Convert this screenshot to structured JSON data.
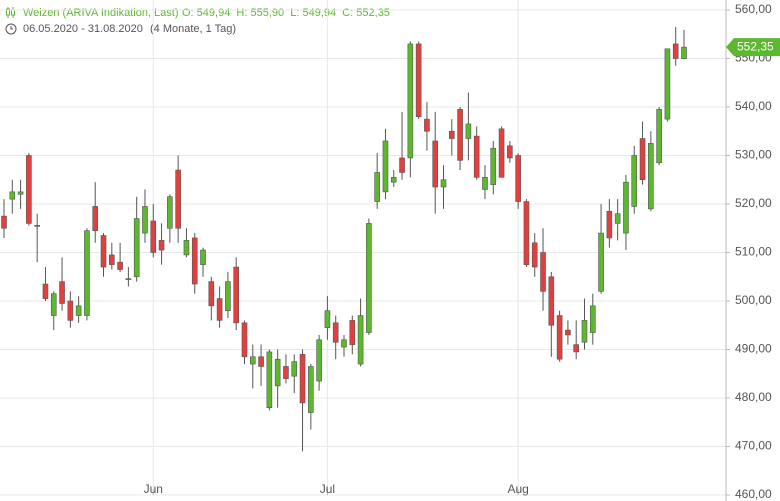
{
  "chart_data": {
    "type": "candlestick",
    "title": "Weizen (ARIVA Indikation, Last)",
    "summary": "O: 549,94  H: 555,90  L: 549,94  C: 552,35",
    "period": "06.05.2020 - 31.08.2020",
    "duration": "(4 Monate, 1 Tag)",
    "up_color": "#5cb82e",
    "down_color": "#e2403e",
    "grid": true,
    "ylim": [
      460,
      560
    ],
    "yticks": [
      {
        "value": 460,
        "label": "460,00"
      },
      {
        "value": 470,
        "label": "470,00"
      },
      {
        "value": 480,
        "label": "480,00"
      },
      {
        "value": 490,
        "label": "490,00"
      },
      {
        "value": 500,
        "label": "500,00"
      },
      {
        "value": 510,
        "label": "510,00"
      },
      {
        "value": 520,
        "label": "520,00"
      },
      {
        "value": 530,
        "label": "530,00"
      },
      {
        "value": 540,
        "label": "540,00"
      },
      {
        "value": 550,
        "label": "550,00"
      },
      {
        "value": 560,
        "label": "560,00"
      }
    ],
    "last_price": {
      "value": 552.35,
      "label": "552,35"
    },
    "categories": [
      null,
      null,
      null,
      null,
      null,
      null,
      null,
      null,
      null,
      null,
      null,
      null,
      null,
      null,
      null,
      null,
      null,
      null,
      "Jun",
      null,
      null,
      null,
      null,
      null,
      null,
      null,
      null,
      null,
      null,
      null,
      null,
      null,
      null,
      null,
      null,
      null,
      null,
      null,
      null,
      "Jul",
      null,
      null,
      null,
      null,
      null,
      null,
      null,
      null,
      null,
      null,
      null,
      null,
      null,
      null,
      null,
      null,
      null,
      null,
      null,
      null,
      null,
      null,
      "Aug",
      null,
      null,
      null,
      null,
      null,
      null,
      null,
      null,
      null,
      null,
      null,
      null,
      null,
      null,
      null,
      null,
      null,
      null,
      null,
      null
    ],
    "open": [
      517.5,
      521,
      522,
      530,
      515.6,
      503.5,
      497,
      504,
      500,
      497,
      497,
      519.5,
      513.5,
      509.5,
      508,
      504.4,
      505,
      514,
      516.5,
      512.5,
      515,
      527,
      509.5,
      513,
      507.5,
      504,
      500.5,
      498,
      507,
      495.5,
      487,
      488.5,
      478,
      482.5,
      486.5,
      484.5,
      489,
      477,
      483.5,
      494.5,
      495.5,
      490.5,
      496,
      487,
      493.5,
      520.5,
      522.5,
      524.5,
      529.5,
      529.5,
      553,
      537.5,
      533,
      523.5,
      535,
      539.5,
      533.5,
      534,
      523,
      524,
      535.5,
      532,
      530,
      520.5,
      512,
      510,
      505,
      497,
      494,
      491,
      491.5,
      493.5,
      502,
      518.5,
      516,
      514,
      519.5,
      533.5,
      519,
      528.5,
      537.5,
      553,
      549.94
    ],
    "high": [
      521,
      525,
      525,
      530.5,
      518,
      507,
      502,
      509,
      502,
      501,
      515,
      524.5,
      514,
      512,
      512,
      507,
      521.5,
      523,
      520,
      516,
      522,
      530,
      515,
      514,
      511,
      505,
      503,
      506,
      509,
      496,
      491,
      491,
      490,
      490,
      489,
      489,
      490,
      487,
      493,
      501,
      497,
      493,
      497,
      500.5,
      517,
      530.5,
      535.5,
      527,
      539,
      553.5,
      553.5,
      541,
      539,
      528,
      537.5,
      540,
      543,
      536,
      528,
      533,
      536,
      533,
      530.5,
      521,
      514,
      515,
      506,
      498,
      496,
      496,
      500.5,
      501.5,
      520,
      521,
      521,
      526,
      532,
      537,
      535,
      540,
      551.5,
      556.5,
      555.9
    ],
    "low": [
      513,
      518,
      519,
      515.5,
      508,
      500,
      494,
      498,
      494.5,
      495.5,
      496,
      512,
      505,
      506.5,
      506,
      503,
      504,
      512,
      509,
      507.5,
      512,
      512,
      509,
      501.5,
      505,
      496,
      494.5,
      496.5,
      494,
      487,
      482,
      482.5,
      477.5,
      478,
      483,
      481,
      469,
      473.5,
      481.5,
      492,
      488,
      488.5,
      489,
      486.5,
      493,
      519,
      521,
      523.5,
      525,
      525.5,
      537.5,
      531,
      518,
      519,
      530,
      527,
      529,
      525,
      521,
      522,
      525.5,
      528.5,
      519,
      507,
      505,
      498,
      488.5,
      487.5,
      491,
      488,
      490,
      491,
      501.5,
      511,
      512.5,
      510.5,
      518,
      524,
      518.5,
      528,
      537,
      548.5,
      549.94
    ],
    "close": [
      515,
      522.5,
      522.5,
      516,
      515.4,
      500.5,
      501.5,
      499.5,
      496,
      499,
      514.5,
      514.5,
      507,
      507.5,
      506.5,
      504.6,
      517,
      519.5,
      510,
      510.5,
      521.5,
      515,
      512.5,
      503.5,
      510.5,
      499,
      496,
      504,
      495.5,
      488.5,
      488.5,
      486.5,
      489.5,
      488,
      484,
      487.5,
      479,
      486.5,
      492,
      498,
      491.5,
      492,
      491,
      497,
      516,
      526.5,
      533,
      525.5,
      526.5,
      553,
      538,
      535,
      523.5,
      525,
      533.5,
      529,
      536.5,
      525.5,
      525.5,
      531.5,
      525.5,
      529.5,
      520.5,
      507.5,
      507,
      502,
      495,
      488,
      493,
      489.5,
      496,
      499,
      514,
      513,
      518,
      524.5,
      530,
      525,
      532.5,
      539.5,
      552,
      550,
      552.35
    ]
  }
}
